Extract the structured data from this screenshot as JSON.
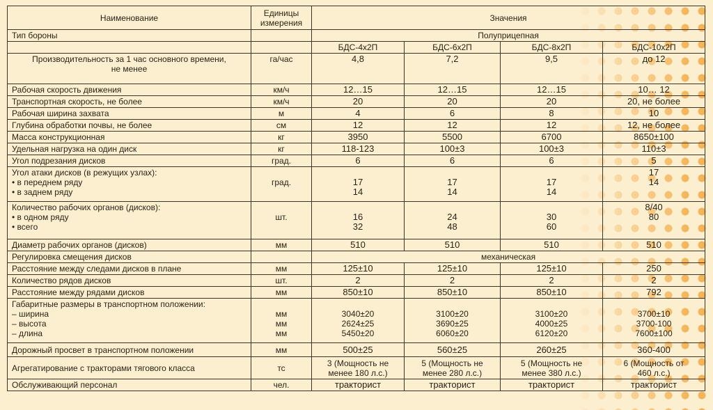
{
  "header": {
    "name": "Наименование",
    "unit": "Единицы\nизмерения",
    "values": "Значения"
  },
  "type_row": {
    "name": "Тип бороны",
    "value": "Полуприцепная"
  },
  "models": [
    "БДС-4х2П",
    "БДС-6х2П",
    "БДС-8х2П",
    "БДС-10х2П"
  ],
  "rows": [
    {
      "name": "Производительность за 1 час основного времени,\nне менее",
      "center": true,
      "unit": "га/час",
      "values": [
        "4,8",
        "7,2",
        "9,5",
        "до 12"
      ],
      "h": 44
    },
    {
      "name": "Рабочая скорость движения",
      "unit": "км/ч",
      "values": [
        "12…15",
        "12…15",
        "12…15",
        "10… 12"
      ]
    },
    {
      "name": "Транспортная скорость, не более",
      "unit": "км/ч",
      "values": [
        "20",
        "20",
        "20",
        "20, не более"
      ]
    },
    {
      "name": "Рабочая ширина захвата",
      "unit": "м",
      "values": [
        "4",
        "6",
        "8",
        "10"
      ]
    },
    {
      "name": "Глубина обработки почвы, не более",
      "unit": "см",
      "values": [
        "12",
        "12",
        "12",
        "12, не более"
      ]
    },
    {
      "name": "Масса конструкционная",
      "unit": "кг",
      "values": [
        "3950",
        "5500",
        "6700",
        "8650±100"
      ]
    },
    {
      "name": "Удельная нагрузка на один диск",
      "unit": "кг",
      "values": [
        "118-123",
        "100±3",
        "100±3",
        "110±3"
      ]
    },
    {
      "name": "Угол подрезания дисков",
      "unit": "град.",
      "values": [
        "6",
        "6",
        "6",
        "5"
      ]
    },
    {
      "name": "Угол атаки дисков (в режущих узлах):\n      •   в переднем ряду\n      •   в заднем ряду",
      "unit": "\nград.",
      "values": [
        "\n17\n14",
        "\n17\n14",
        "\n17\n14",
        "17\n14"
      ],
      "h": 50
    },
    {
      "name": "Количество рабочих органов (дисков):\n      •   в одном ряду\n      •   всего",
      "unit": "\nшт.",
      "values": [
        "\n16\n32",
        "\n24\n48",
        "\n30\n60",
        "8/40\n80"
      ],
      "h": 54
    },
    {
      "name": "Диаметр рабочих органов (дисков)",
      "unit": "мм",
      "values": [
        "510",
        "510",
        "510",
        "510"
      ]
    },
    {
      "name": "Регулировка смещения дисков",
      "unit": "",
      "span": "механическая"
    },
    {
      "name": "Расстояние между следами дисков в плане",
      "unit": "мм",
      "values": [
        "125±10",
        "125±10",
        "125±10",
        "250"
      ]
    },
    {
      "name": "Количество рядов дисков",
      "unit": "шт.",
      "values": [
        "2",
        "2",
        "2",
        "2"
      ]
    },
    {
      "name": "Расстояние между рядами дисков",
      "unit": "мм",
      "values": [
        "850±10",
        "850±10",
        "850±10",
        "792"
      ]
    },
    {
      "name": "Габаритные размеры в транспортном положении:\n  – ширина\n  – высота\n  – длина",
      "unit": "\nмм\nмм\nмм",
      "values": [
        "\n3040±20\n2624±25\n5450±20",
        "\n3100±20\n3690±25\n6060±20",
        "\n3100±20\n4000±25\n6120±20",
        "\n3700±10\n3700-100\n7600±100"
      ],
      "h": 64
    },
    {
      "name": "Дорожный просвет в транспортном положении",
      "unit": "мм",
      "values": [
        "500±25",
        "560±25",
        "260±25",
        "360-400"
      ],
      "mid": true,
      "h": 20
    },
    {
      "name": "Агрегатирование с тракторами тягового класса",
      "unit": "тс",
      "values": [
        "3 (Мощность не\nменее 180 л.с.)",
        "5  (Мощность не\nменее 280 л.с.)",
        "5 (Мощность не\nменее 380 л.с.)",
        "6 (Мощность от\n460 л.с.)"
      ],
      "mid": true,
      "h": 32
    },
    {
      "name": "Обслуживающий персонал",
      "unit": "чел.",
      "values": [
        "тракторист",
        "тракторист",
        "тракторист",
        "тракторист"
      ]
    }
  ]
}
